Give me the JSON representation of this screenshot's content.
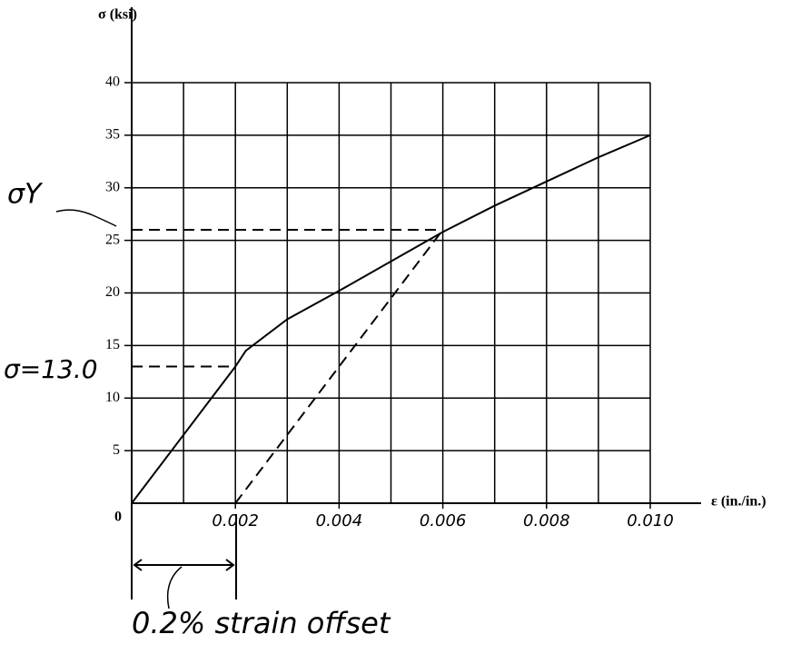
{
  "chart_data": {
    "type": "line",
    "y_label": "σ (ksi)",
    "x_label": "ε (in./in.)",
    "annotations": [
      "σY",
      "σ=13.0",
      "0.2% strain offset"
    ],
    "xlim": [
      0,
      0.01
    ],
    "ylim": [
      0,
      40
    ],
    "xticks": [
      {
        "value": 0,
        "label": "0"
      },
      0.002,
      0.004,
      0.006,
      0.008,
      {
        "value": 0.01,
        "label": "0.010"
      }
    ],
    "yticks": [
      5,
      10,
      15,
      20,
      25,
      30,
      35,
      40
    ],
    "xgrid": [
      0.001,
      0.002,
      0.003,
      0.004,
      0.005,
      0.006,
      0.007,
      0.008,
      0.009,
      0.01
    ],
    "grid": true,
    "series": [
      {
        "color": "#000000",
        "dashed": false,
        "x": [
          0,
          0.002,
          0.0022,
          0.003,
          0.004,
          0.005,
          0.006,
          0.007,
          0.008,
          0.009,
          0.01
        ],
        "values": [
          0,
          13,
          14.5,
          17.5,
          20.2,
          23,
          25.8,
          28.3,
          30.6,
          32.9,
          35
        ]
      },
      {
        "color": "#000000",
        "dashed": true,
        "x": [
          0.002,
          0.006
        ],
        "values": [
          0,
          26
        ]
      },
      {
        "color": "#000000",
        "dashed": true,
        "x": [
          0,
          0.006
        ],
        "values": [
          26,
          26
        ]
      },
      {
        "color": "#000000",
        "dashed": true,
        "x": [
          0,
          0.002
        ],
        "values": [
          13,
          13
        ]
      }
    ]
  }
}
